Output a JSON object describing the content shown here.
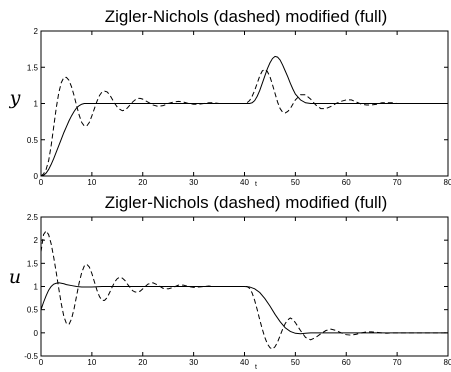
{
  "chart_data": [
    {
      "type": "line",
      "title": "Zigler-Nichols (dashed) modified (full)",
      "xlabel": "t",
      "ylabel": "y",
      "xlim": [
        0,
        80
      ],
      "ylim": [
        0,
        2
      ],
      "xticks": [
        "0",
        "10",
        "20",
        "30",
        "40",
        "50",
        "60",
        "70",
        "80"
      ],
      "yticks": [
        "0",
        "0.5",
        "1",
        "1.5",
        "2"
      ],
      "grid": false,
      "series": [
        {
          "style": "dashed",
          "x": [
            0,
            0.5,
            1,
            1.5,
            2,
            2.5,
            3,
            3.5,
            4,
            4.5,
            5,
            5.5,
            6,
            6.5,
            7,
            7.5,
            8,
            8.5,
            9,
            9.5,
            10,
            10.5,
            11,
            11.5,
            12,
            12.5,
            13,
            13.5,
            14,
            14.5,
            15,
            15.5,
            16,
            16.5,
            17,
            17.5,
            18,
            18.5,
            19,
            19.5,
            20,
            21,
            22,
            23,
            24,
            25,
            26,
            27,
            28,
            29,
            30,
            31,
            32,
            33,
            34,
            35,
            36,
            37,
            38,
            39,
            40,
            40.5,
            41,
            41.5,
            42,
            42.5,
            43,
            43.5,
            44,
            44.5,
            45,
            45.5,
            46,
            46.5,
            47,
            47.5,
            48,
            48.5,
            49,
            49.5,
            50,
            51,
            52,
            53,
            54,
            55,
            56,
            57,
            58,
            59,
            60,
            61,
            62,
            63,
            64,
            65,
            66,
            67,
            68,
            69,
            70,
            72,
            74,
            76,
            78,
            80
          ],
          "y": [
            0,
            0.03,
            0.09,
            0.21,
            0.42,
            0.68,
            0.94,
            1.15,
            1.29,
            1.36,
            1.36,
            1.32,
            1.23,
            1.11,
            0.97,
            0.84,
            0.74,
            0.69,
            0.69,
            0.74,
            0.83,
            0.93,
            1.03,
            1.11,
            1.16,
            1.17,
            1.16,
            1.12,
            1.06,
            1.0,
            0.95,
            0.92,
            0.9,
            0.91,
            0.94,
            0.98,
            1.02,
            1.05,
            1.07,
            1.07,
            1.06,
            1.02,
            0.98,
            0.96,
            0.97,
            1.0,
            1.02,
            1.03,
            1.02,
            1.0,
            0.99,
            0.99,
            1.0,
            1.01,
            1.01,
            1.0,
            1.0,
            1.0,
            1.0,
            1.0,
            1.0,
            1.01,
            1.04,
            1.1,
            1.18,
            1.28,
            1.38,
            1.45,
            1.47,
            1.44,
            1.37,
            1.26,
            1.14,
            1.02,
            0.93,
            0.88,
            0.87,
            0.89,
            0.93,
            0.99,
            1.05,
            1.12,
            1.12,
            1.06,
            0.98,
            0.93,
            0.93,
            0.96,
            1.0,
            1.03,
            1.05,
            1.05,
            1.02,
            0.99,
            0.98,
            0.98,
            0.99,
            1.01,
            1.01,
            1.01,
            1.0,
            1.0,
            1.0,
            1.0,
            1.0,
            1.0
          ]
        },
        {
          "style": "solid",
          "x": [
            0,
            0.5,
            1,
            1.5,
            2,
            2.5,
            3,
            3.5,
            4,
            4.5,
            5,
            5.5,
            6,
            6.5,
            7,
            7.5,
            8,
            8.5,
            9,
            9.5,
            10,
            11,
            12,
            13,
            14,
            15,
            20,
            30,
            40,
            41,
            41.5,
            42,
            42.5,
            43,
            43.5,
            44,
            44.5,
            45,
            45.5,
            46,
            46.5,
            47,
            47.5,
            48,
            48.5,
            49,
            49.5,
            50,
            51,
            52,
            53,
            54,
            55,
            60,
            70,
            80
          ],
          "y": [
            0,
            0.01,
            0.04,
            0.09,
            0.16,
            0.24,
            0.33,
            0.42,
            0.51,
            0.6,
            0.68,
            0.76,
            0.83,
            0.89,
            0.94,
            0.97,
            0.99,
            1.0,
            1.0,
            1.0,
            1.0,
            1.0,
            1.0,
            1.0,
            1.0,
            1.0,
            1.0,
            1.0,
            1.0,
            1.0,
            1.01,
            1.04,
            1.1,
            1.18,
            1.28,
            1.38,
            1.48,
            1.56,
            1.62,
            1.65,
            1.64,
            1.6,
            1.53,
            1.45,
            1.37,
            1.28,
            1.2,
            1.13,
            1.05,
            1.01,
            1.0,
            1.0,
            1.0,
            1.0,
            1.0,
            1.0
          ]
        }
      ]
    },
    {
      "type": "line",
      "title": "Zigler-Nichols (dashed) modified (full)",
      "xlabel": "t",
      "ylabel": "u",
      "xlim": [
        0,
        80
      ],
      "ylim": [
        -0.5,
        2.5
      ],
      "xticks": [
        "0",
        "10",
        "20",
        "30",
        "40",
        "50",
        "60",
        "70",
        "80"
      ],
      "yticks": [
        "-0.5",
        "0",
        "0.5",
        "1",
        "1.5",
        "2",
        "2.5"
      ],
      "grid": false,
      "series": [
        {
          "style": "dashed",
          "x": [
            0,
            0.5,
            1,
            1.5,
            2,
            2.5,
            3,
            3.5,
            4,
            4.5,
            5,
            5.5,
            6,
            6.5,
            7,
            7.5,
            8,
            8.5,
            9,
            9.5,
            10,
            10.5,
            11,
            11.5,
            12,
            12.5,
            13,
            13.5,
            14,
            14.5,
            15,
            15.5,
            16,
            16.5,
            17,
            17.5,
            18,
            18.5,
            19,
            19.5,
            20,
            21,
            22,
            23,
            24,
            25,
            26,
            27,
            28,
            29,
            30,
            31,
            32,
            33,
            34,
            35,
            36,
            37,
            38,
            39,
            40,
            40.5,
            41,
            41.5,
            42,
            42.5,
            43,
            43.5,
            44,
            44.5,
            45,
            45.5,
            46,
            46.5,
            47,
            47.5,
            48,
            48.5,
            49,
            49.5,
            50,
            51,
            52,
            53,
            54,
            55,
            56,
            57,
            58,
            59,
            60,
            61,
            62,
            63,
            64,
            65,
            66,
            67,
            68,
            69,
            70,
            72,
            74,
            76,
            78,
            80
          ],
          "y": [
            1.75,
            2.12,
            2.2,
            2.12,
            1.92,
            1.63,
            1.3,
            0.95,
            0.62,
            0.35,
            0.2,
            0.18,
            0.3,
            0.52,
            0.8,
            1.08,
            1.3,
            1.44,
            1.48,
            1.42,
            1.28,
            1.1,
            0.92,
            0.78,
            0.7,
            0.7,
            0.76,
            0.87,
            0.99,
            1.1,
            1.17,
            1.2,
            1.18,
            1.13,
            1.05,
            0.98,
            0.91,
            0.88,
            0.88,
            0.9,
            0.95,
            1.05,
            1.08,
            1.03,
            0.96,
            0.95,
            0.98,
            1.03,
            1.03,
            1.0,
            0.98,
            0.99,
            1.0,
            1.01,
            1.0,
            1.0,
            1.0,
            1.0,
            1.0,
            1.0,
            1.0,
            1.0,
            0.96,
            0.86,
            0.7,
            0.5,
            0.28,
            0.08,
            -0.1,
            -0.24,
            -0.32,
            -0.35,
            -0.3,
            -0.2,
            -0.06,
            0.08,
            0.2,
            0.28,
            0.32,
            0.29,
            0.22,
            0.05,
            -0.1,
            -0.15,
            -0.1,
            -0.02,
            0.05,
            0.08,
            0.05,
            0.0,
            -0.04,
            -0.05,
            -0.03,
            0.0,
            0.02,
            0.02,
            0.01,
            0.0,
            -0.01,
            0.0,
            0.0,
            0.0,
            0.0,
            0.0,
            0.0,
            0.0
          ]
        },
        {
          "style": "solid",
          "x": [
            0,
            0.5,
            1,
            1.5,
            2,
            2.5,
            3,
            3.5,
            4,
            4.5,
            5,
            6,
            7,
            8,
            9,
            10,
            12,
            14,
            16,
            18,
            20,
            25,
            30,
            35,
            40,
            41,
            42,
            43,
            44,
            45,
            46,
            47,
            48,
            49,
            50,
            51,
            52,
            53,
            54,
            55,
            60,
            70,
            80
          ],
          "y": [
            0.5,
            0.66,
            0.8,
            0.92,
            1.0,
            1.05,
            1.07,
            1.08,
            1.07,
            1.06,
            1.04,
            1.02,
            1.0,
            0.99,
            0.99,
            0.99,
            1.0,
            1.0,
            1.0,
            1.0,
            1.0,
            1.0,
            1.0,
            1.0,
            1.0,
            0.99,
            0.95,
            0.87,
            0.74,
            0.58,
            0.4,
            0.24,
            0.11,
            0.03,
            -0.01,
            -0.02,
            -0.01,
            0.0,
            0.0,
            0.0,
            0.0,
            0.0,
            0.0
          ]
        }
      ]
    }
  ]
}
